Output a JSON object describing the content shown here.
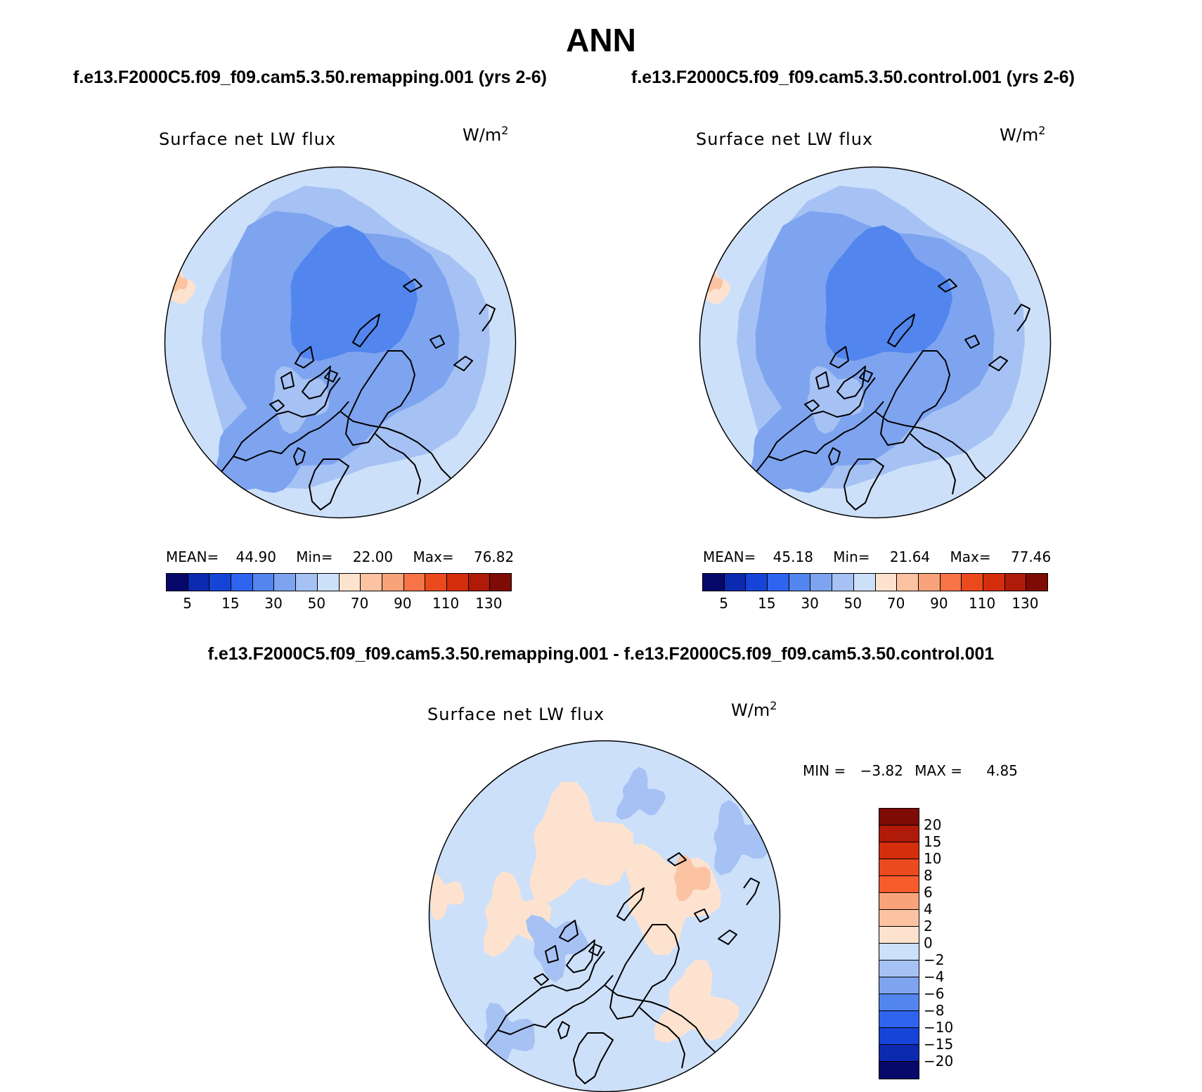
{
  "figure": {
    "title": "ANN",
    "case1": "f.e13.F2000C5.f09_f09.cam5.3.50.remapping.001 (yrs 2-6)",
    "case2": "f.e13.F2000C5.f09_f09.cam5.3.50.control.001 (yrs 2-6)",
    "diff_title": "f.e13.F2000C5.f09_f09.cam5.3.50.remapping.001 - f.e13.F2000C5.f09_f09.cam5.3.50.control.001"
  },
  "panels": {
    "left": {
      "variable": "Surface net LW flux",
      "units": "W/m",
      "units_exp": "2",
      "mean_label": "MEAN=",
      "mean": "44.90",
      "min_label": "Min=",
      "min": "22.00",
      "max_label": "Max=",
      "max": "76.82"
    },
    "right": {
      "variable": "Surface net LW flux",
      "units": "W/m",
      "units_exp": "2",
      "mean_label": "MEAN=",
      "mean": "45.18",
      "min_label": "Min=",
      "min": "21.64",
      "max_label": "Max=",
      "max": "77.46"
    },
    "diff": {
      "variable": "Surface net LW flux",
      "units": "W/m",
      "units_exp": "2",
      "min_label": "MIN =",
      "min": "−3.82",
      "max_label": "MAX =",
      "max": "4.85"
    }
  },
  "colorbars": {
    "abs_colors": [
      "#08086b",
      "#0c2ab0",
      "#1644d8",
      "#2e64f0",
      "#5286ee",
      "#7ea4f0",
      "#a6c2f4",
      "#cde0fa",
      "#fde3cf",
      "#fcc3a3",
      "#f9a37a",
      "#f67446",
      "#ea4a1e",
      "#d42e0c",
      "#b01a08",
      "#7e0b06"
    ],
    "abs_labels": [
      "5",
      "15",
      "30",
      "50",
      "70",
      "90",
      "110",
      "130"
    ],
    "diff_colors": [
      "#7e0b06",
      "#b01a08",
      "#d42e0c",
      "#ea4a1e",
      "#f95b2c",
      "#f9a37a",
      "#fcc3a3",
      "#fde3cf",
      "#cde0fa",
      "#a6c2f4",
      "#7ea4f0",
      "#5286ee",
      "#2e64f0",
      "#1644d8",
      "#0c2ab0",
      "#08086b"
    ],
    "diff_labels": [
      "20",
      "15",
      "10",
      "8",
      "6",
      "4",
      "2",
      "0",
      "−2",
      "−4",
      "−6",
      "−8",
      "−10",
      "−15",
      "−20"
    ]
  },
  "map_fills": {
    "abs_base": "#7ea4f0",
    "abs_outer": "#a6c2f4",
    "abs_rim": "#cde0fa",
    "abs_core": "#5286ee",
    "abs_warm": "#fde3cf",
    "abs_warm2": "#fcc3a3",
    "diff_base": "#cde0fa",
    "diff_pos": "#fde3cf",
    "diff_pos2": "#fcc3a3",
    "diff_neg": "#a6c2f4",
    "coast": "#000000"
  }
}
